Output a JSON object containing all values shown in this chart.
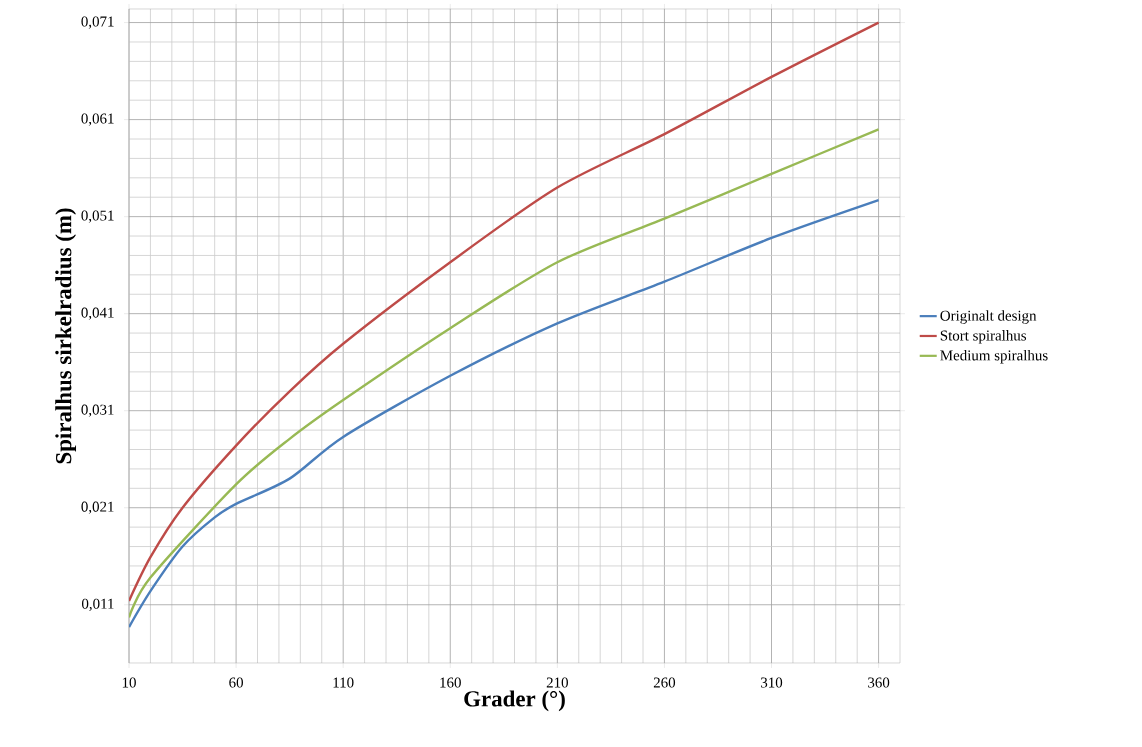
{
  "chart_data": {
    "type": "line",
    "xlabel": "Grader (°)",
    "ylabel": "Spiralhus sirkelradius (m)",
    "xlim": [
      10,
      370
    ],
    "ylim": [
      0.005,
      0.0724
    ],
    "xticks": [
      10,
      60,
      110,
      160,
      210,
      260,
      310,
      360
    ],
    "yticks": [
      {
        "value": 0.011,
        "label": "0,011"
      },
      {
        "value": 0.021,
        "label": "0,021"
      },
      {
        "value": 0.031,
        "label": "0,031"
      },
      {
        "value": 0.041,
        "label": "0,041"
      },
      {
        "value": 0.051,
        "label": "0,051"
      },
      {
        "value": 0.061,
        "label": "0,061"
      },
      {
        "value": 0.071,
        "label": "0,071"
      }
    ],
    "grid": true,
    "legend": "right",
    "marker": "none",
    "line_style": "solid",
    "series": [
      {
        "name": "Originalt design",
        "color": "#4a7ebb",
        "x": [
          10,
          20,
          35,
          50,
          60,
          85,
          110,
          160,
          210,
          260,
          310,
          360
        ],
        "values": [
          0.0087,
          0.0124,
          0.017,
          0.02,
          0.0214,
          0.024,
          0.0283,
          0.0346,
          0.04,
          0.0443,
          0.0488,
          0.0527
        ]
      },
      {
        "name": "Stort spiralhus",
        "color": "#be4b48",
        "x": [
          10,
          20,
          35,
          60,
          85,
          110,
          160,
          210,
          260,
          310,
          360
        ],
        "values": [
          0.0114,
          0.0159,
          0.021,
          0.0274,
          0.033,
          0.0379,
          0.0463,
          0.054,
          0.0595,
          0.0654,
          0.071
        ]
      },
      {
        "name": "Medium spiralhus",
        "color": "#98b954",
        "x": [
          10,
          20,
          60,
          85,
          110,
          160,
          210,
          260,
          310,
          360
        ],
        "values": [
          0.0097,
          0.0138,
          0.0234,
          0.0281,
          0.0321,
          0.0395,
          0.0463,
          0.0508,
          0.0554,
          0.06
        ]
      }
    ]
  }
}
